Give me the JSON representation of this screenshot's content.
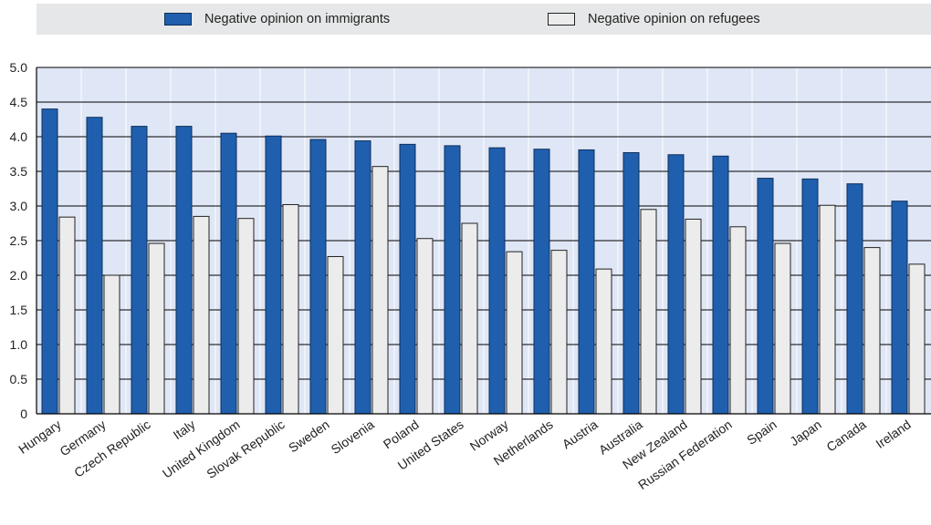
{
  "chart_data": {
    "type": "bar",
    "categories": [
      "Hungary",
      "Germany",
      "Czech Republic",
      "Italy",
      "United Kingdom",
      "Slovak Republic",
      "Sweden",
      "Slovenia",
      "Poland",
      "United States",
      "Norway",
      "Netherlands",
      "Austria",
      "Australia",
      "New Zealand",
      "Russian Federation",
      "Spain",
      "Japan",
      "Canada",
      "Ireland"
    ],
    "series": [
      {
        "name": "Negative opinion on immigrants",
        "color": "#1f5fae",
        "values": [
          4.4,
          4.28,
          4.15,
          4.15,
          4.05,
          4.01,
          3.96,
          3.94,
          3.89,
          3.87,
          3.84,
          3.82,
          3.81,
          3.77,
          3.74,
          3.72,
          3.4,
          3.39,
          3.32,
          3.07
        ]
      },
      {
        "name": "Negative opinion on refugees",
        "color": "#ececec",
        "values": [
          2.84,
          2.0,
          2.46,
          2.85,
          2.82,
          3.02,
          2.27,
          3.57,
          2.53,
          2.75,
          2.34,
          2.36,
          2.09,
          2.95,
          2.81,
          2.7,
          2.46,
          3.01,
          2.4,
          2.16
        ]
      }
    ],
    "yticks": [
      "0",
      "0.5",
      "1.0",
      "1.5",
      "2.0",
      "2.5",
      "3.0",
      "3.5",
      "4.0",
      "4.5",
      "5.0"
    ],
    "ylim": [
      0,
      5
    ],
    "title": "",
    "xlabel": "",
    "ylabel": "",
    "grid": true,
    "legend_position": "top",
    "plot_background": "#dfe6f5"
  }
}
